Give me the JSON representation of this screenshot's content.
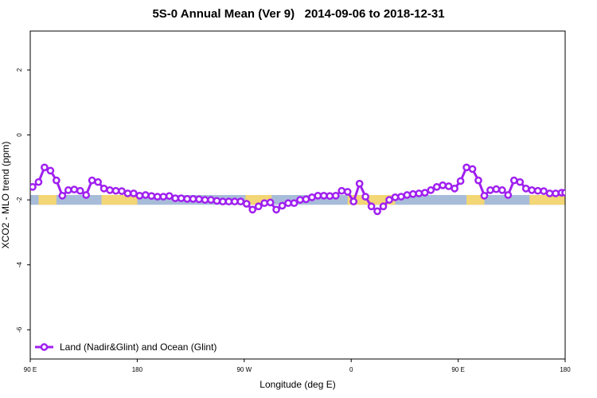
{
  "chart_data": {
    "type": "line",
    "title": "5S-0 Annual Mean (Ver 9)   2014-09-06 to 2018-12-31",
    "xlabel": "Longitude (deg E)",
    "ylabel": "XCO2 - MLO trend (ppm)",
    "x_ticks": [
      {
        "value": 90,
        "label": "90 E"
      },
      {
        "value": 180,
        "label": "180"
      },
      {
        "value": 270,
        "label": "90 W"
      },
      {
        "value": 360,
        "label": "0"
      },
      {
        "value": 450,
        "label": "90 E"
      },
      {
        "value": 540,
        "label": "180"
      }
    ],
    "y_ticks": [
      {
        "value": 2,
        "label": "2"
      },
      {
        "value": 0,
        "label": "0"
      },
      {
        "value": -2,
        "label": "-2"
      },
      {
        "value": -4,
        "label": "-4"
      },
      {
        "value": -6,
        "label": "-6"
      }
    ],
    "xlim": [
      90,
      540
    ],
    "ylim": [
      -6.9,
      3.2
    ],
    "band": {
      "ymin": -2.15,
      "ymax": -1.85,
      "ocean_color": "#a7bcd9",
      "land_color": "#f3d675"
    },
    "land_segments": [
      [
        97,
        112
      ],
      [
        150,
        180
      ],
      [
        271,
        293
      ],
      [
        357,
        397
      ],
      [
        457,
        472
      ],
      [
        510,
        540
      ]
    ],
    "legend": {
      "position": "bottom-left"
    },
    "series": [
      {
        "name": "Land (Nadir&Glint) and Ocean (Glint)",
        "color": "#a020f0",
        "x": [
          92,
          97,
          102,
          107,
          112,
          117,
          122,
          127,
          132,
          137,
          142,
          147,
          152,
          157,
          162,
          167,
          172,
          177,
          182,
          187,
          192,
          197,
          202,
          207,
          212,
          217,
          222,
          227,
          232,
          237,
          242,
          247,
          252,
          257,
          262,
          267,
          272,
          277,
          282,
          287,
          292,
          297,
          302,
          307,
          312,
          317,
          322,
          327,
          332,
          337,
          342,
          347,
          352,
          357,
          362,
          367,
          372,
          377,
          382,
          387,
          392,
          397,
          402,
          407,
          412,
          417,
          422,
          427,
          432,
          437,
          442,
          447,
          452,
          457,
          462,
          467,
          472,
          477,
          482,
          487,
          492,
          497,
          502,
          507,
          512,
          517,
          522,
          527,
          532,
          537,
          540
        ],
        "values": [
          -1.6,
          -1.45,
          -1.0,
          -1.1,
          -1.4,
          -1.87,
          -1.7,
          -1.68,
          -1.72,
          -1.85,
          -1.4,
          -1.45,
          -1.65,
          -1.7,
          -1.72,
          -1.73,
          -1.8,
          -1.8,
          -1.87,
          -1.85,
          -1.88,
          -1.9,
          -1.9,
          -1.88,
          -1.95,
          -1.95,
          -1.97,
          -1.97,
          -1.98,
          -2.0,
          -2.0,
          -2.03,
          -2.05,
          -2.05,
          -2.05,
          -2.05,
          -2.12,
          -2.3,
          -2.2,
          -2.1,
          -2.08,
          -2.3,
          -2.18,
          -2.1,
          -2.1,
          -2.0,
          -1.98,
          -1.92,
          -1.87,
          -1.87,
          -1.88,
          -1.87,
          -1.72,
          -1.75,
          -2.05,
          -1.5,
          -1.9,
          -2.2,
          -2.35,
          -2.2,
          -2.0,
          -1.92,
          -1.9,
          -1.85,
          -1.82,
          -1.8,
          -1.78,
          -1.7,
          -1.6,
          -1.55,
          -1.58,
          -1.65,
          -1.42,
          -1.0,
          -1.05,
          -1.4,
          -1.87,
          -1.7,
          -1.67,
          -1.7,
          -1.85,
          -1.4,
          -1.45,
          -1.65,
          -1.7,
          -1.72,
          -1.73,
          -1.8,
          -1.8,
          -1.78,
          -1.78
        ]
      }
    ]
  }
}
